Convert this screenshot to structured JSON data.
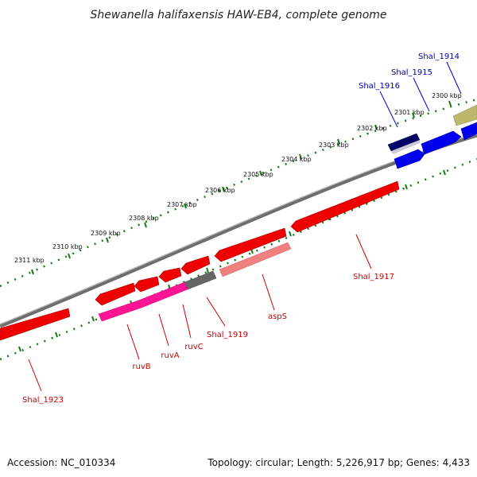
{
  "title": "Shewanella halifaxensis HAW-EB4, complete genome",
  "footer": {
    "accession": "Accession: NC_010334",
    "topology": "Topology: circular; Length: 5,226,917 bp; Genes: 4,433"
  },
  "ruler_labels": [
    "2300 kbp",
    "2301 kbp",
    "2302 kbp",
    "2303 kbp",
    "2304 kbp",
    "2305 kbp",
    "2306 kbp",
    "2307 kbp",
    "2308 kbp",
    "2309 kbp",
    "2310 kbp",
    "2311 kbp"
  ],
  "genes": [
    {
      "name": "Shal_1914",
      "color": "#0000aa"
    },
    {
      "name": "Shal_1915",
      "color": "#0000aa"
    },
    {
      "name": "Shal_1916",
      "color": "#0000aa"
    },
    {
      "name": "Shal_1917",
      "color": "#cc0000"
    },
    {
      "name": "aspS",
      "color": "#cc0000"
    },
    {
      "name": "Shal_1919",
      "color": "#cc0000"
    },
    {
      "name": "ruvC",
      "color": "#cc0000"
    },
    {
      "name": "ruvA",
      "color": "#cc0000"
    },
    {
      "name": "ruvB",
      "color": "#cc0000"
    },
    {
      "name": "Shal_1923",
      "color": "#cc0000"
    }
  ],
  "colors": {
    "forward_strand": "#0000ee",
    "reverse_strand": "#ee0000",
    "pink_feature": "#ff1493",
    "salmon_feature": "#f08080",
    "gray_feature": "#666666",
    "olive_feature": "#bdb76b",
    "navy_feature": "#000066",
    "ticks": "#1a7a1a",
    "backbone": "#808080"
  }
}
